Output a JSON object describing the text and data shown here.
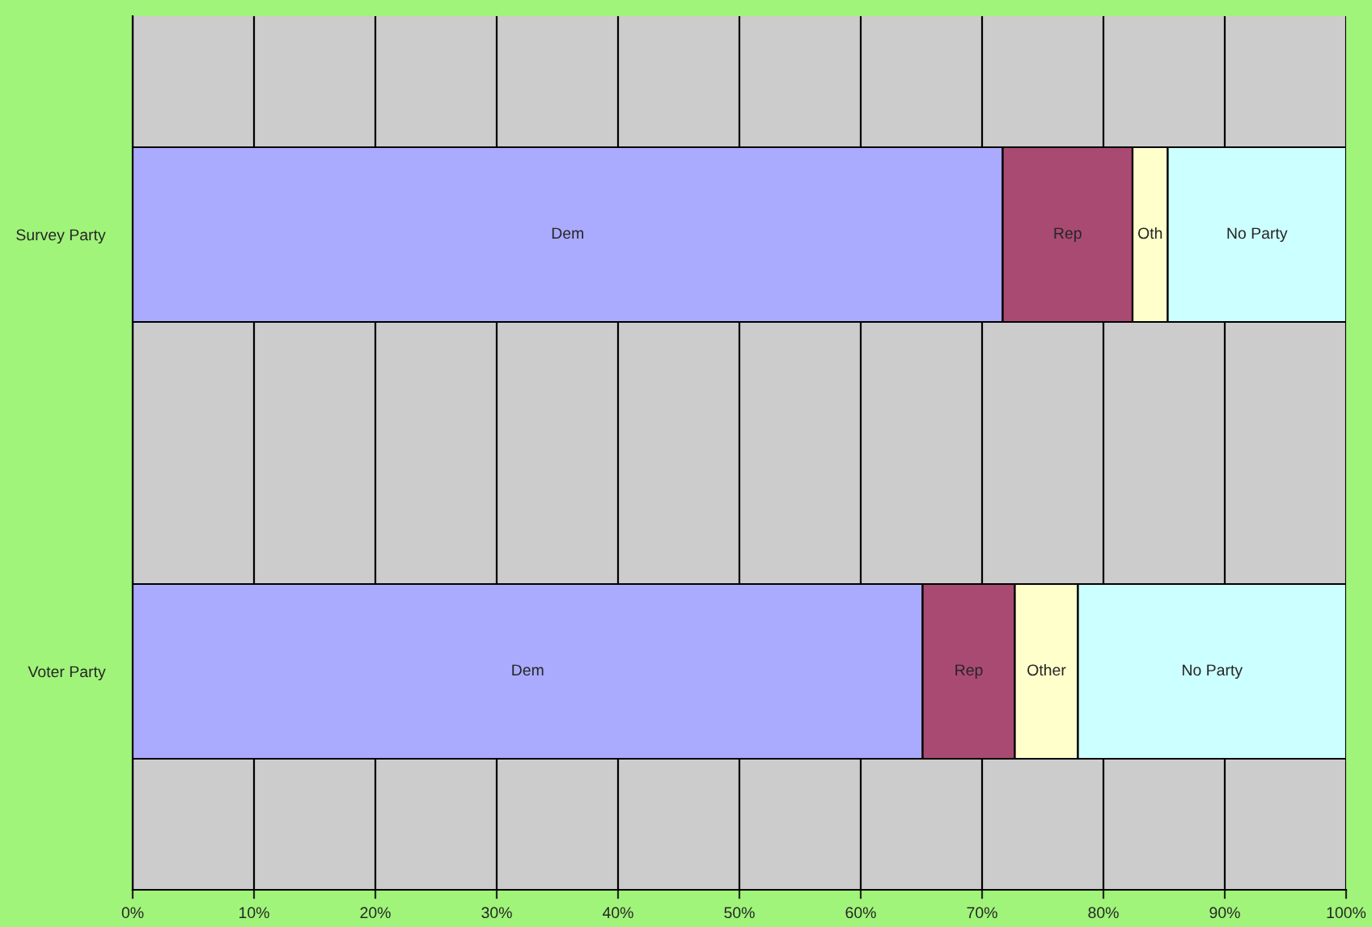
{
  "chart_data": {
    "type": "bar",
    "orientation": "horizontal",
    "stacked": true,
    "categories": [
      "Survey Party",
      "Voter Party"
    ],
    "series": [
      {
        "color": "#aaaaff",
        "values": [
          71.7,
          65.1
        ],
        "value_labels": [
          "Dem",
          "Dem"
        ]
      },
      {
        "color": "#a94a73",
        "values": [
          10.7,
          7.6
        ],
        "value_labels": [
          "Rep",
          "Rep"
        ]
      },
      {
        "color": "#ffffcc",
        "values": [
          2.9,
          5.2
        ],
        "value_labels": [
          "Oth",
          "Other"
        ]
      },
      {
        "color": "#ccffff",
        "values": [
          14.7,
          22.1
        ],
        "value_labels": [
          "No Party",
          "No Party"
        ]
      }
    ],
    "xlim": [
      0,
      100
    ],
    "xticks": [
      {
        "value": 0,
        "label": "0%"
      },
      {
        "value": 10,
        "label": "10%"
      },
      {
        "value": 20,
        "label": "20%"
      },
      {
        "value": 30,
        "label": "30%"
      },
      {
        "value": 40,
        "label": "40%"
      },
      {
        "value": 50,
        "label": "50%"
      },
      {
        "value": 60,
        "label": "60%"
      },
      {
        "value": 70,
        "label": "70%"
      },
      {
        "value": 80,
        "label": "80%"
      },
      {
        "value": 90,
        "label": "90%"
      },
      {
        "value": 100,
        "label": "100%"
      }
    ],
    "grid": "x",
    "legend": false
  }
}
